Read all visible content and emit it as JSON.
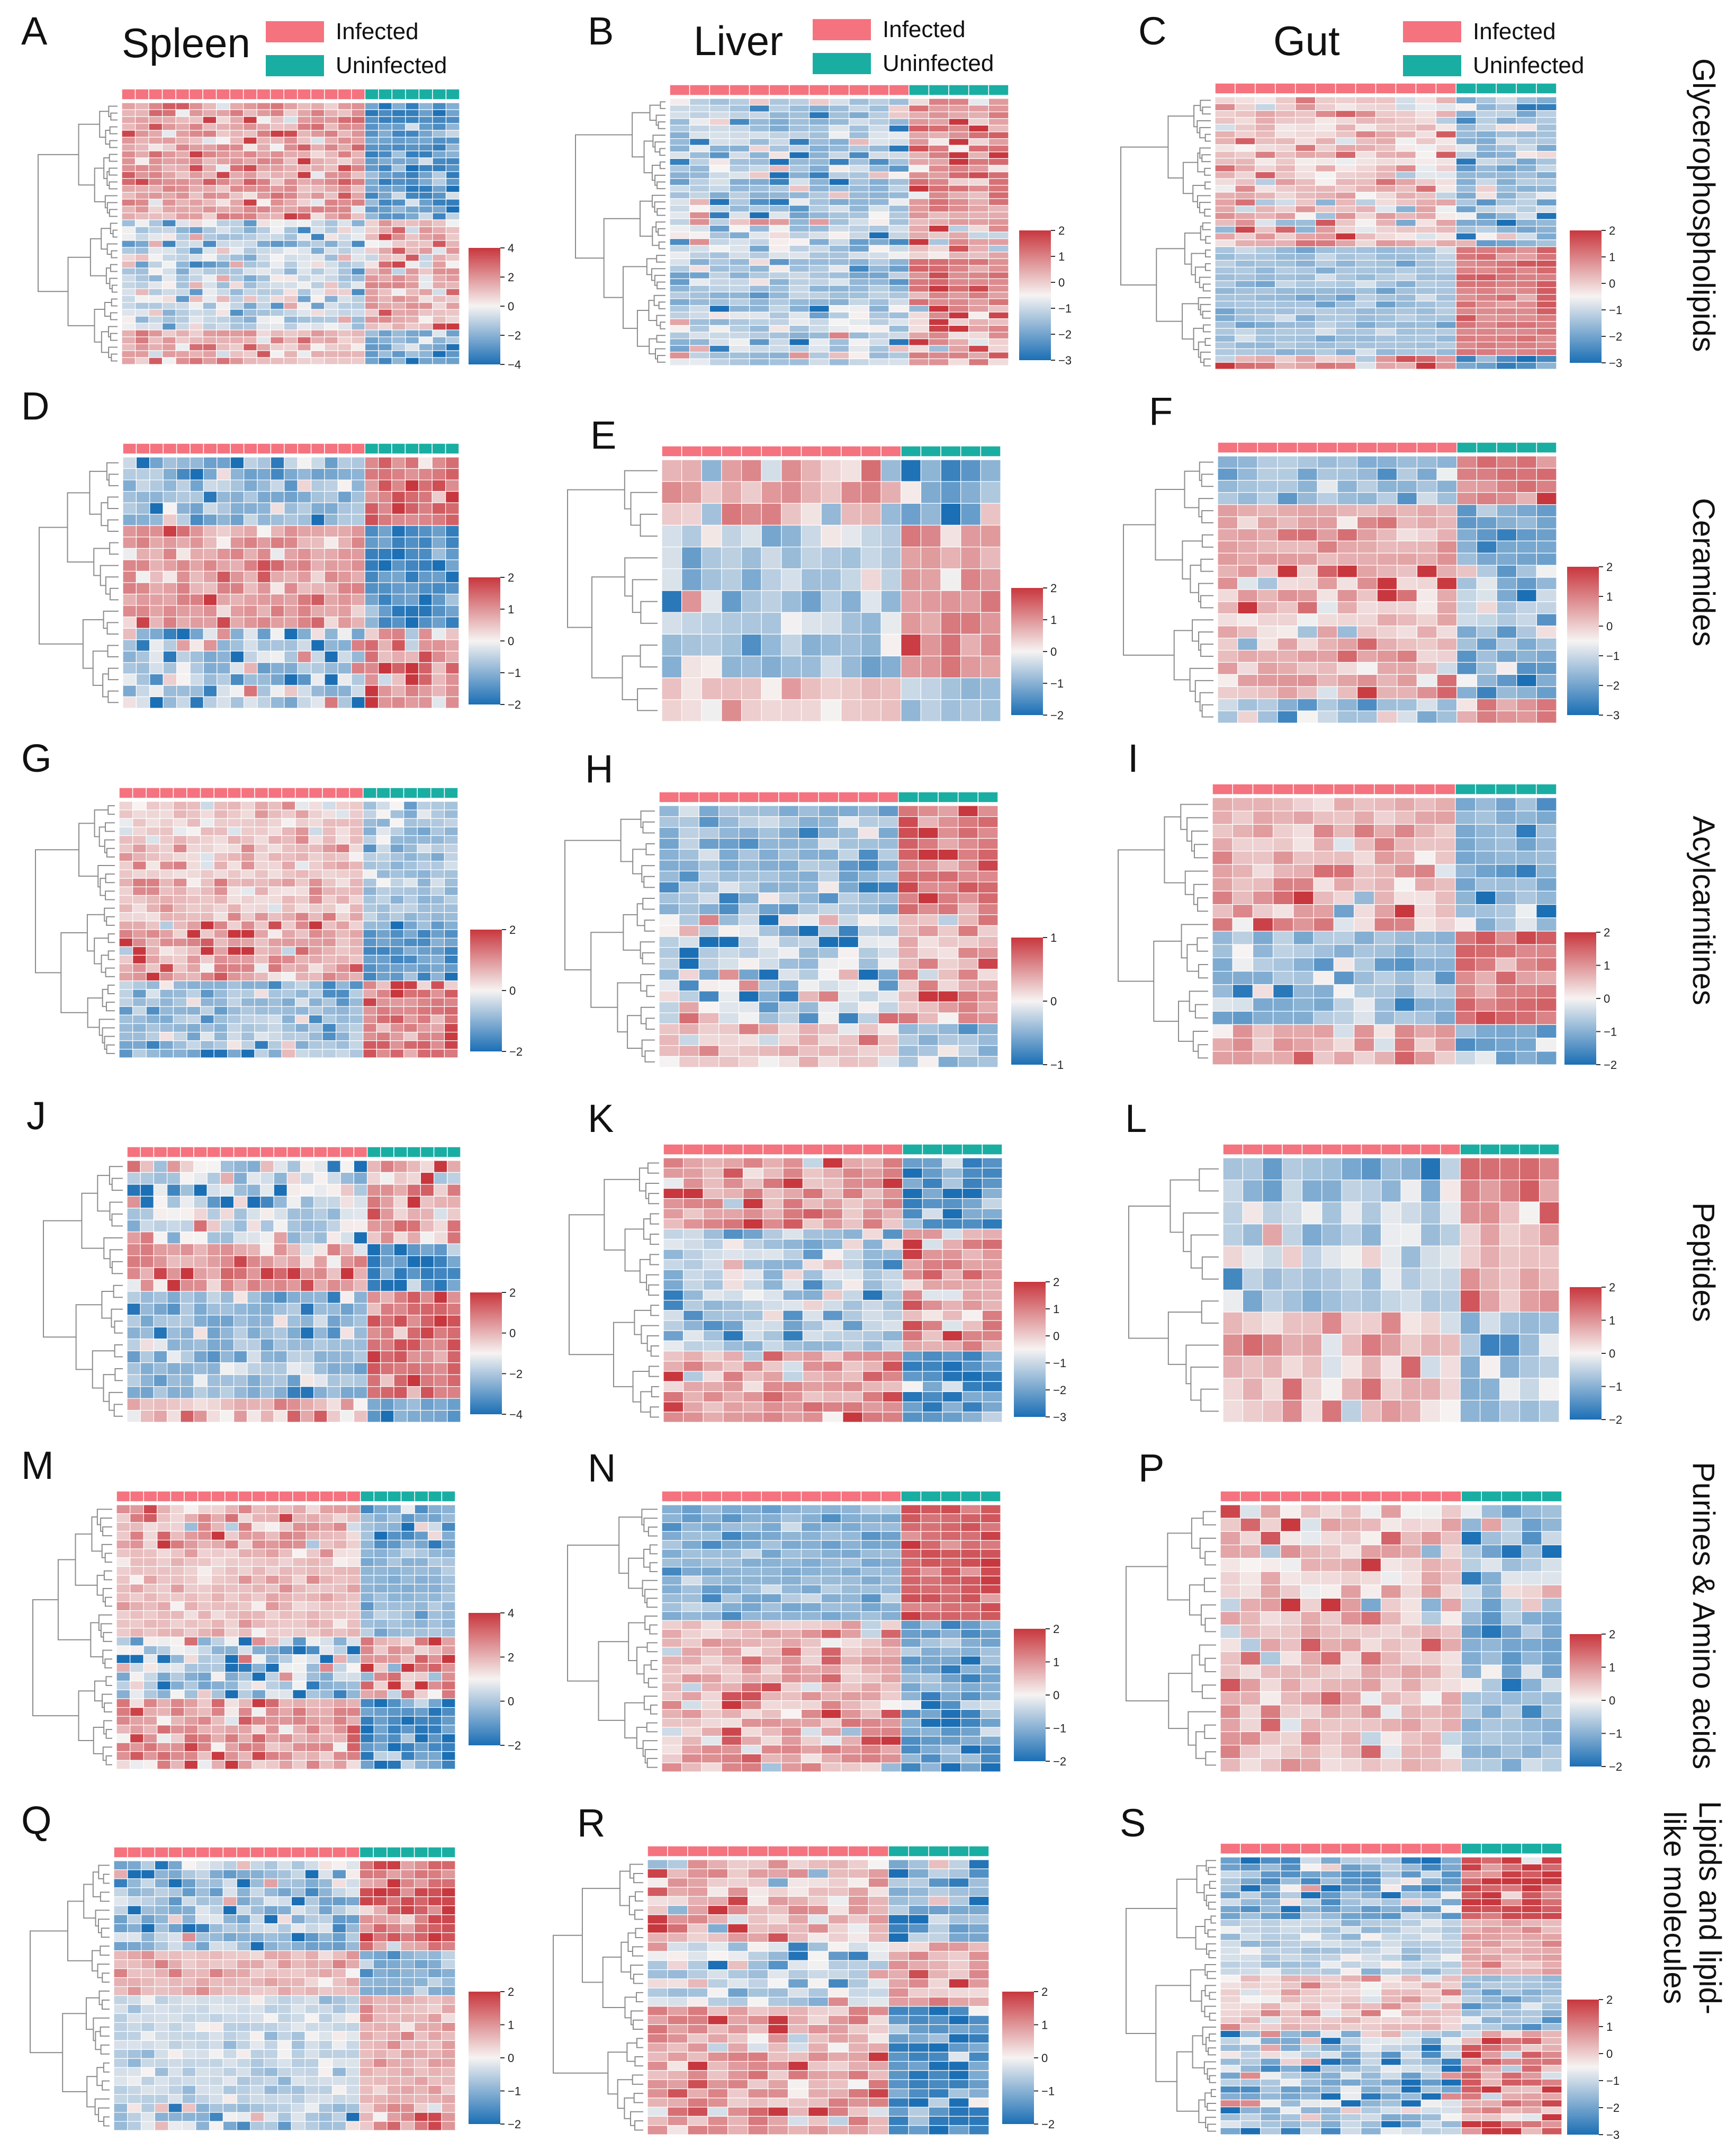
{
  "colors": {
    "infected": "#f4737f",
    "uninfected": "#1aaea3",
    "high": "#c8373e",
    "low": "#1b6fb5",
    "mid": "#f6f3f2",
    "dendrogram": "#8c8c8c"
  },
  "tissues": {
    "spleen": "Spleen",
    "liver": "Liver",
    "gut": "Gut"
  },
  "legend": {
    "infected": "Infected",
    "uninfected": "Uninfected"
  },
  "row_labels": {
    "glycerophospholipids": "Glycerophospholipids",
    "ceramides": "Ceramides",
    "acylcarnitines": "Acylcarnitines",
    "peptides": "Peptides",
    "purines": "Purines & Amino acids",
    "lipids_line1": "Lipids and lipid-",
    "lipids_line2": "like molecules"
  },
  "chart_data": [
    {
      "panel": "A",
      "type": "heatmap",
      "tissue": "Spleen",
      "class": "Glycerophospholipids",
      "n_infected": 18,
      "n_uninfected": 7,
      "n_features": 38,
      "colorbar_range": [
        -4,
        4
      ],
      "colorbar_ticks": [
        "4",
        "2",
        "0",
        "−2",
        "−4"
      ],
      "groups": [
        "Infected",
        "Uninfected"
      ]
    },
    {
      "panel": "B",
      "type": "heatmap",
      "tissue": "Liver",
      "class": "Glycerophospholipids",
      "n_infected": 12,
      "n_uninfected": 5,
      "n_features": 40,
      "colorbar_range": [
        -3,
        2
      ],
      "colorbar_ticks": [
        "2",
        "1",
        "0",
        "−1",
        "−2",
        "−3"
      ],
      "groups": [
        "Infected",
        "Uninfected"
      ]
    },
    {
      "panel": "C",
      "type": "heatmap",
      "tissue": "Gut",
      "class": "Glycerophospholipids",
      "n_infected": 12,
      "n_uninfected": 5,
      "n_features": 40,
      "colorbar_range": [
        -3,
        2
      ],
      "colorbar_ticks": [
        "2",
        "1",
        "0",
        "−1",
        "−2",
        "−3"
      ],
      "groups": [
        "Infected",
        "Uninfected"
      ]
    },
    {
      "panel": "D",
      "type": "heatmap",
      "tissue": "Spleen",
      "class": "Ceramides",
      "n_infected": 18,
      "n_uninfected": 7,
      "n_features": 22,
      "colorbar_range": [
        -2,
        2
      ],
      "colorbar_ticks": [
        "2",
        "1",
        "0",
        "−1",
        "−2"
      ],
      "groups": [
        "Infected",
        "Uninfected"
      ]
    },
    {
      "panel": "E",
      "type": "heatmap",
      "tissue": "Liver",
      "class": "Ceramides",
      "n_infected": 12,
      "n_uninfected": 5,
      "n_features": 12,
      "colorbar_range": [
        -2,
        2
      ],
      "colorbar_ticks": [
        "2",
        "1",
        "0",
        "−1",
        "−2"
      ],
      "groups": [
        "Infected",
        "Uninfected"
      ]
    },
    {
      "panel": "F",
      "type": "heatmap",
      "tissue": "Gut",
      "class": "Ceramides",
      "n_infected": 12,
      "n_uninfected": 5,
      "n_features": 22,
      "colorbar_range": [
        -3,
        2
      ],
      "colorbar_ticks": [
        "2",
        "1",
        "0",
        "−1",
        "−2",
        "−3"
      ],
      "groups": [
        "Infected",
        "Uninfected"
      ]
    },
    {
      "panel": "G",
      "type": "heatmap",
      "tissue": "Spleen",
      "class": "Acylcarnitines",
      "n_infected": 18,
      "n_uninfected": 7,
      "n_features": 30,
      "colorbar_range": [
        -2,
        2
      ],
      "colorbar_ticks": [
        "2",
        "0",
        "−2"
      ],
      "groups": [
        "Infected",
        "Uninfected"
      ]
    },
    {
      "panel": "H",
      "type": "heatmap",
      "tissue": "Liver",
      "class": "Acylcarnitines",
      "n_infected": 12,
      "n_uninfected": 5,
      "n_features": 24,
      "colorbar_range": [
        -1,
        1
      ],
      "colorbar_ticks": [
        "1",
        "0",
        "−1"
      ],
      "groups": [
        "Infected",
        "Uninfected"
      ]
    },
    {
      "panel": "I",
      "type": "heatmap",
      "tissue": "Gut",
      "class": "Acylcarnitines",
      "n_infected": 12,
      "n_uninfected": 5,
      "n_features": 20,
      "colorbar_range": [
        -2,
        2
      ],
      "colorbar_ticks": [
        "2",
        "1",
        "0",
        "−1",
        "−2"
      ],
      "groups": [
        "Infected",
        "Uninfected"
      ]
    },
    {
      "panel": "J",
      "type": "heatmap",
      "tissue": "Spleen",
      "class": "Peptides",
      "n_infected": 18,
      "n_uninfected": 7,
      "n_features": 22,
      "colorbar_range": [
        -4,
        2
      ],
      "colorbar_ticks": [
        "2",
        "0",
        "−2",
        "−4"
      ],
      "groups": [
        "Infected",
        "Uninfected"
      ]
    },
    {
      "panel": "K",
      "type": "heatmap",
      "tissue": "Liver",
      "class": "Peptides",
      "n_infected": 12,
      "n_uninfected": 5,
      "n_features": 26,
      "colorbar_range": [
        -3,
        2
      ],
      "colorbar_ticks": [
        "2",
        "1",
        "0",
        "−1",
        "−2",
        "−3"
      ],
      "groups": [
        "Infected",
        "Uninfected"
      ]
    },
    {
      "panel": "L",
      "type": "heatmap",
      "tissue": "Gut",
      "class": "Peptides",
      "n_infected": 12,
      "n_uninfected": 5,
      "n_features": 12,
      "colorbar_range": [
        -2,
        2
      ],
      "colorbar_ticks": [
        "2",
        "1",
        "0",
        "−1",
        "−2"
      ],
      "groups": [
        "Infected",
        "Uninfected"
      ]
    },
    {
      "panel": "M",
      "type": "heatmap",
      "tissue": "Spleen",
      "class": "Purines & Amino acids",
      "n_infected": 18,
      "n_uninfected": 7,
      "n_features": 30,
      "colorbar_range": [
        -2,
        4
      ],
      "colorbar_ticks": [
        "4",
        "2",
        "0",
        "−2"
      ],
      "groups": [
        "Infected",
        "Uninfected"
      ]
    },
    {
      "panel": "N",
      "type": "heatmap",
      "tissue": "Liver",
      "class": "Purines & Amino acids",
      "n_infected": 12,
      "n_uninfected": 5,
      "n_features": 30,
      "colorbar_range": [
        -2,
        2
      ],
      "colorbar_ticks": [
        "2",
        "1",
        "0",
        "−1",
        "−2"
      ],
      "groups": [
        "Infected",
        "Uninfected"
      ]
    },
    {
      "panel": "P",
      "type": "heatmap",
      "tissue": "Gut",
      "class": "Purines & Amino acids",
      "n_infected": 12,
      "n_uninfected": 5,
      "n_features": 20,
      "colorbar_range": [
        -2,
        2
      ],
      "colorbar_ticks": [
        "2",
        "1",
        "0",
        "−1",
        "−2"
      ],
      "groups": [
        "Infected",
        "Uninfected"
      ]
    },
    {
      "panel": "Q",
      "type": "heatmap",
      "tissue": "Spleen",
      "class": "Lipids and lipid-like molecules",
      "n_infected": 18,
      "n_uninfected": 7,
      "n_features": 30,
      "colorbar_range": [
        -2,
        2
      ],
      "colorbar_ticks": [
        "2",
        "1",
        "0",
        "−1",
        "−2"
      ],
      "groups": [
        "Infected",
        "Uninfected"
      ]
    },
    {
      "panel": "R",
      "type": "heatmap",
      "tissue": "Liver",
      "class": "Lipids and lipid-like molecules",
      "n_infected": 12,
      "n_uninfected": 5,
      "n_features": 30,
      "colorbar_range": [
        -2,
        2
      ],
      "colorbar_ticks": [
        "2",
        "1",
        "0",
        "−1",
        "−2"
      ],
      "groups": [
        "Infected",
        "Uninfected"
      ]
    },
    {
      "panel": "S",
      "type": "heatmap",
      "tissue": "Gut",
      "class": "Lipids and lipid-like molecules",
      "n_infected": 12,
      "n_uninfected": 5,
      "n_features": 40,
      "colorbar_range": [
        -3,
        2
      ],
      "colorbar_ticks": [
        "2",
        "1",
        "0",
        "−1",
        "−2",
        "−3"
      ],
      "groups": [
        "Infected",
        "Uninfected"
      ]
    }
  ]
}
